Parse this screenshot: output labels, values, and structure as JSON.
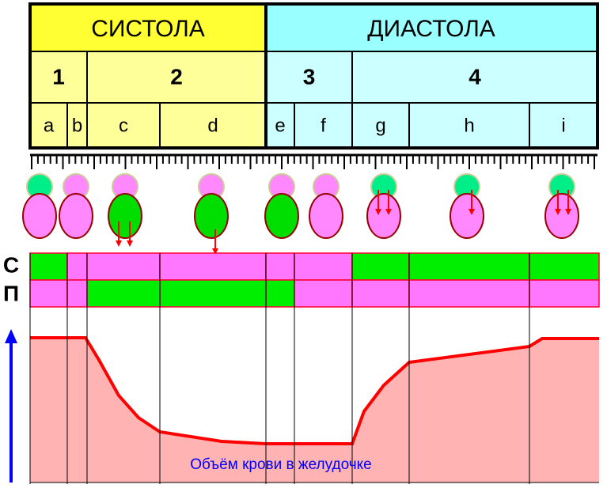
{
  "header": {
    "systole": "СИСТОЛА",
    "diastole": "ДИАСТОЛА"
  },
  "phases": [
    "1",
    "2",
    "3",
    "4"
  ],
  "subphases": [
    "a",
    "b",
    "c",
    "d",
    "e",
    "f",
    "g",
    "h",
    "i"
  ],
  "rows": [
    "С",
    "П"
  ],
  "curve_label": "Объём  крови в желудочке"
}
